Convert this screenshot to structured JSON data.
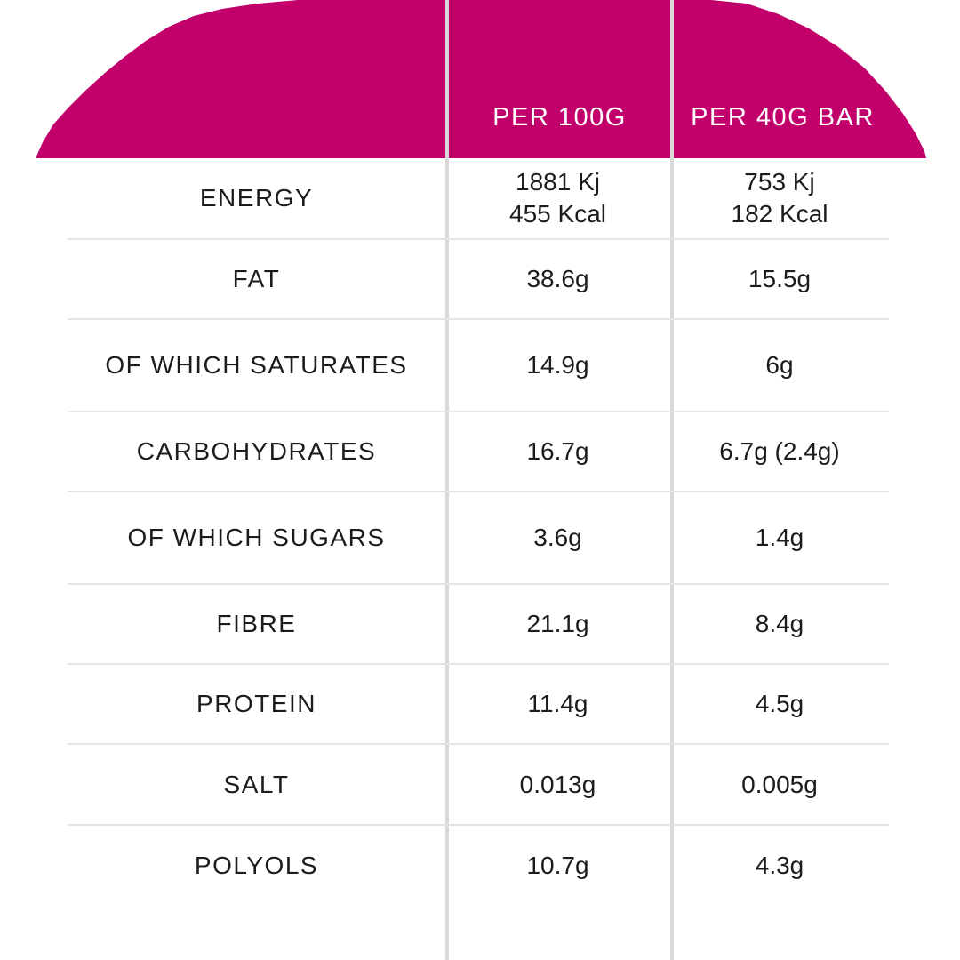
{
  "colors": {
    "header_bg": "#c2006c",
    "header_text": "#ffffff",
    "divider": "#d9d9d9",
    "row_border": "#e4e4e4",
    "body_text": "#1c1c1c"
  },
  "columns": {
    "per_100g": "PER 100G",
    "per_40g_bar": "PER 40G BAR"
  },
  "rows": [
    {
      "label": "ENERGY",
      "per_100g": [
        "1881 Kj",
        "455 Kcal"
      ],
      "per_40g": [
        "753 Kj",
        "182 Kcal"
      ]
    },
    {
      "label": "FAT",
      "per_100g": [
        "38.6g"
      ],
      "per_40g": [
        "15.5g"
      ]
    },
    {
      "label": "OF WHICH SATURATES",
      "per_100g": [
        "14.9g"
      ],
      "per_40g": [
        "6g"
      ]
    },
    {
      "label": "CARBOHYDRATES",
      "per_100g": [
        "16.7g"
      ],
      "per_40g": [
        "6.7g (2.4g)"
      ]
    },
    {
      "label": "OF WHICH SUGARS",
      "per_100g": [
        "3.6g"
      ],
      "per_40g": [
        "1.4g"
      ]
    },
    {
      "label": "FIBRE",
      "per_100g": [
        "21.1g"
      ],
      "per_40g": [
        "8.4g"
      ]
    },
    {
      "label": "PROTEIN",
      "per_100g": [
        "11.4g"
      ],
      "per_40g": [
        "4.5g"
      ]
    },
    {
      "label": "SALT",
      "per_100g": [
        "0.013g"
      ],
      "per_40g": [
        "0.005g"
      ]
    },
    {
      "label": "POLYOLS",
      "per_100g": [
        "10.7g"
      ],
      "per_40g": [
        "4.3g"
      ]
    }
  ]
}
